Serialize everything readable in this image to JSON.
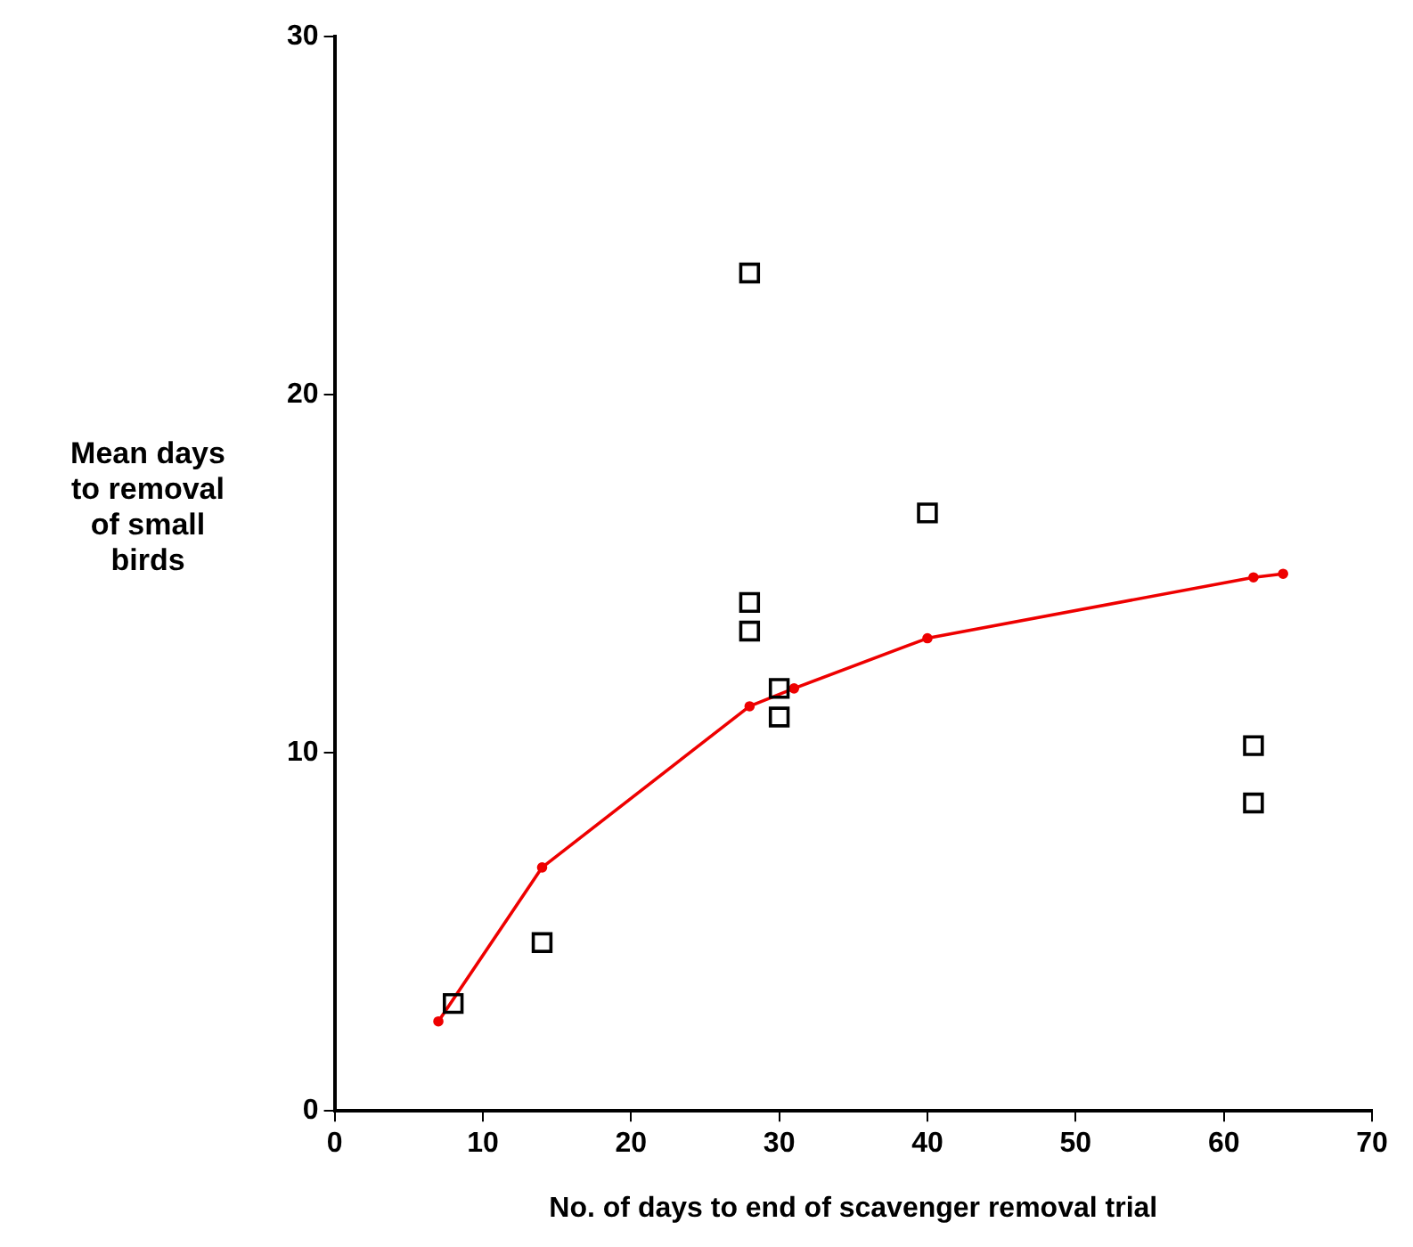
{
  "chart_data": {
    "type": "scatter",
    "xlabel": "No. of days to end of scavenger removal trial",
    "ylabel": "Mean days\nto removal\nof small\nbirds",
    "xlim": [
      0,
      70
    ],
    "xticks": [
      0,
      10,
      20,
      30,
      40,
      50,
      60,
      70
    ],
    "ylim": [
      0,
      30
    ],
    "yticks": [
      0,
      10,
      20,
      30
    ],
    "grid": false,
    "legend": false,
    "series": [
      {
        "color": "#000000",
        "marker": "square",
        "x": [
          8,
          14,
          28,
          28,
          28,
          30,
          30,
          40,
          62,
          62
        ],
        "values": [
          3.0,
          4.7,
          23.4,
          14.2,
          13.4,
          11.8,
          11.0,
          16.7,
          10.2,
          8.6
        ]
      },
      {
        "type": "line",
        "color": "#ee0000",
        "marker": "circle",
        "line_style": "solid",
        "x": [
          7,
          14,
          28,
          31,
          40,
          62,
          64
        ],
        "values": [
          2.5,
          6.8,
          11.3,
          11.8,
          13.2,
          14.9,
          15.0
        ]
      }
    ]
  }
}
